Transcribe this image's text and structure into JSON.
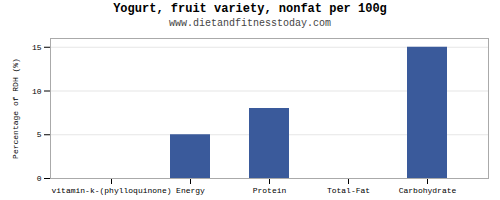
{
  "chart_data": {
    "type": "bar",
    "title": "Yogurt, fruit variety, nonfat per 100g",
    "subtitle": "www.dietandfitnesstoday.com",
    "categories": [
      "vitamin-k-(phylloquinone)",
      "Energy",
      "Protein",
      "Total-Fat",
      "Carbohydrate"
    ],
    "values": [
      0,
      5,
      8,
      0,
      15
    ],
    "color": "#3a5a9b",
    "ylabel": "Percentage of RDH (%)",
    "ylim": [
      0,
      16
    ],
    "yticks": [
      0,
      5,
      10,
      15
    ],
    "grid": true
  }
}
